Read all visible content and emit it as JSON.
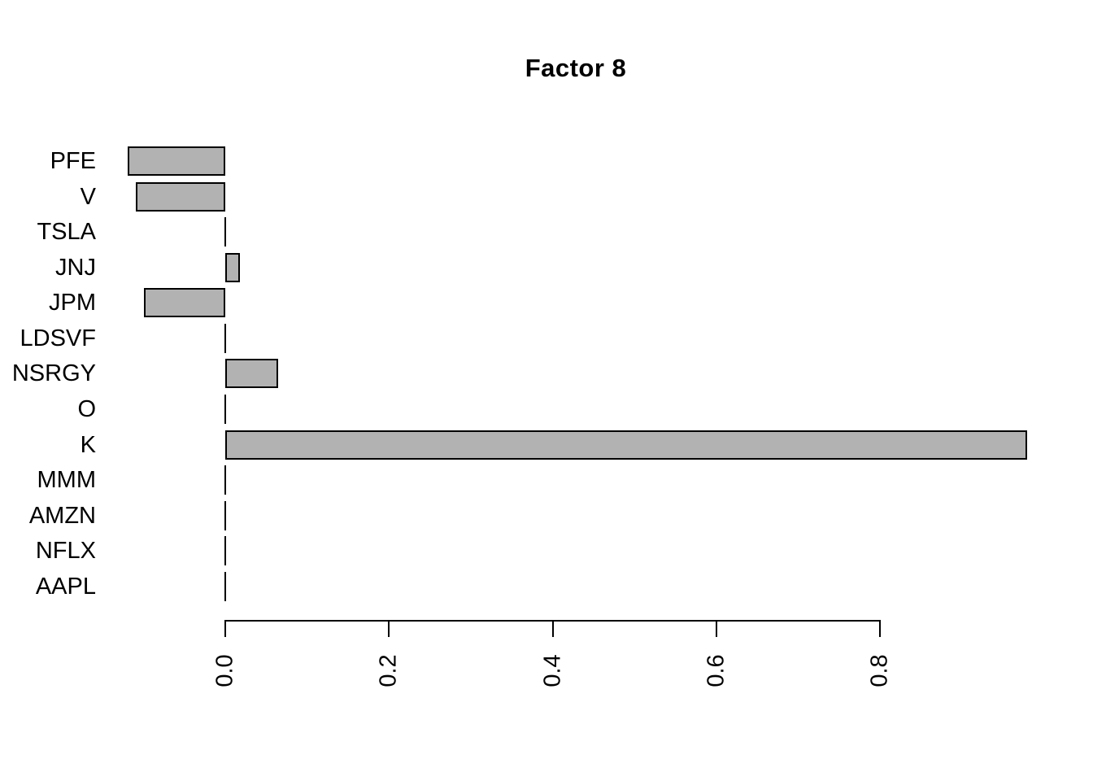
{
  "chart_data": {
    "type": "bar",
    "orientation": "horizontal",
    "title": "Factor 8",
    "categories": [
      "PFE",
      "V",
      "TSLA",
      "JNJ",
      "JPM",
      "LDSVF",
      "NSRGY",
      "O",
      "K",
      "MMM",
      "AMZN",
      "NFLX",
      "AAPL"
    ],
    "values": [
      -0.119,
      -0.109,
      0,
      0.018,
      -0.099,
      0,
      0.065,
      0,
      0.98,
      0,
      0,
      0,
      0
    ],
    "x_ticks": [
      0.0,
      0.2,
      0.4,
      0.6,
      0.8
    ],
    "x_tick_labels": [
      "0.0",
      "0.2",
      "0.4",
      "0.6",
      "0.8"
    ],
    "xlim": [
      -0.12,
      1.0
    ],
    "xlabel": "",
    "ylabel": "",
    "grid": false,
    "legend": false,
    "bar_fill_color": "#b2b2b2",
    "bar_border_color": "#000000",
    "axis_color": "#000000",
    "text_color": "#000000"
  }
}
